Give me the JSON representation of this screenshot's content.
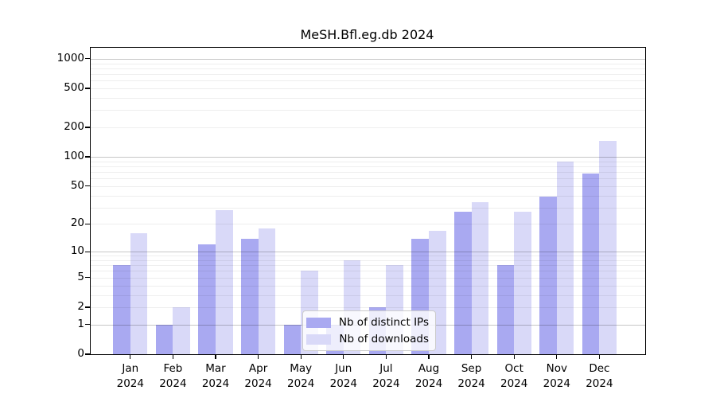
{
  "title": "MeSH.Bfl.eg.db 2024",
  "chart_data": {
    "type": "bar",
    "title": "MeSH.Bfl.eg.db 2024",
    "year": "2024",
    "categories": [
      "Jan",
      "Feb",
      "Mar",
      "Apr",
      "May",
      "Jun",
      "Jul",
      "Aug",
      "Sep",
      "Oct",
      "Nov",
      "Dec"
    ],
    "series": [
      {
        "name": "Nb of distinct IPs",
        "color": "#a9a9f1",
        "values": [
          7,
          1,
          12,
          14,
          1,
          1,
          2,
          14,
          27,
          7,
          39,
          67
        ]
      },
      {
        "name": "Nb of downloads",
        "color": "#d9d9f8",
        "values": [
          16,
          2,
          28,
          18,
          6,
          8,
          7,
          17,
          34,
          27,
          90,
          145
        ]
      }
    ],
    "xlabel": "",
    "ylabel": "",
    "yticks": [
      0,
      1,
      2,
      5,
      10,
      20,
      50,
      100,
      200,
      500,
      1000
    ],
    "scale": "log10(value+1)",
    "ylim_log_top": 3.112,
    "grid": {
      "minor_values": [
        3,
        4,
        6,
        7,
        8,
        9,
        30,
        40,
        60,
        70,
        80,
        90,
        300,
        400,
        600,
        700,
        800,
        900
      ],
      "midlight_values": [
        2,
        5,
        20,
        50,
        200,
        500
      ],
      "major_values": [
        1,
        10,
        100,
        1000
      ],
      "minor_color": "rgba(0,0,0,0.065)",
      "major_color": "rgba(0,0,0,0.22)"
    },
    "legend": {
      "position": "bottom-center",
      "entries": [
        "Nb of distinct IPs",
        "Nb of downloads"
      ]
    },
    "colors": {
      "axis": "#000000",
      "background": "#ffffff"
    }
  }
}
